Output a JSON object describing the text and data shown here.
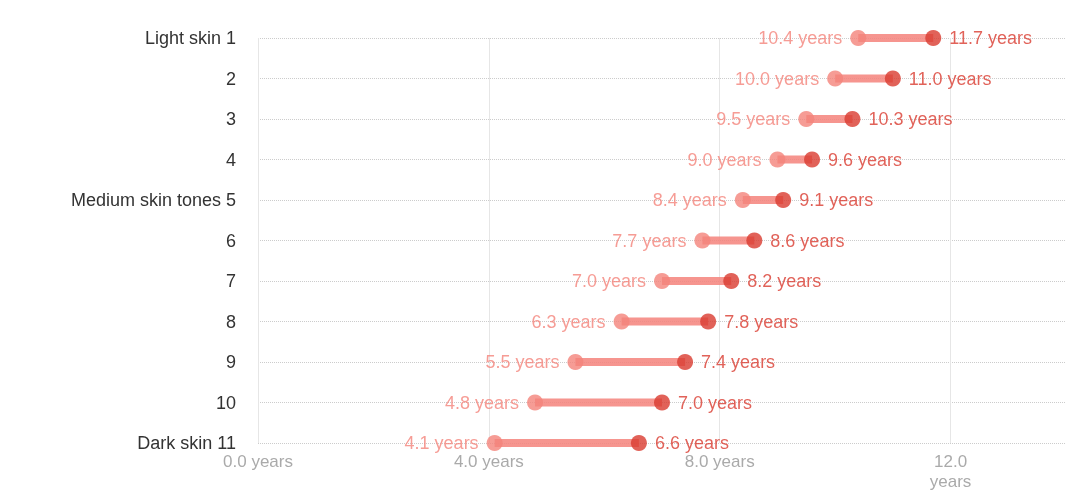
{
  "chart_data": {
    "type": "scatter",
    "orientation": "horizontal",
    "categories": [
      "Light skin 1",
      "2",
      "3",
      "4",
      "Medium skin tones 5",
      "6",
      "7",
      "8",
      "9",
      "10",
      "Dark skin 11"
    ],
    "series": [
      {
        "color": "#f4837b",
        "values": [
          10.4,
          10.0,
          9.5,
          9.0,
          8.4,
          7.7,
          7.0,
          6.3,
          5.5,
          4.8,
          4.1
        ],
        "value_labels": [
          "10.4 years",
          "10.0 years",
          "9.5 years",
          "9.0 years",
          "8.4 years",
          "7.7 years",
          "7.0 years",
          "6.3 years",
          "5.5 years",
          "4.8 years",
          "4.1 years"
        ]
      },
      {
        "color": "#d93b30",
        "values": [
          11.7,
          11.0,
          10.3,
          9.6,
          9.1,
          8.6,
          8.2,
          7.8,
          7.4,
          7.0,
          6.6
        ],
        "value_labels": [
          "11.7 years",
          "11.0 years",
          "10.3 years",
          "9.6 years",
          "9.1 years",
          "8.6 years",
          "8.2 years",
          "7.8 years",
          "7.4 years",
          "7.0 years",
          "6.6 years"
        ]
      }
    ],
    "xlim": [
      0,
      14
    ],
    "xticks": [
      {
        "value": 0,
        "label": "0.0 years"
      },
      {
        "value": 4,
        "label": "4.0 years"
      },
      {
        "value": 8,
        "label": "8.0 years"
      },
      {
        "value": 12,
        "label": "12.0\nyears"
      }
    ],
    "grid": true,
    "marker": "circle"
  }
}
